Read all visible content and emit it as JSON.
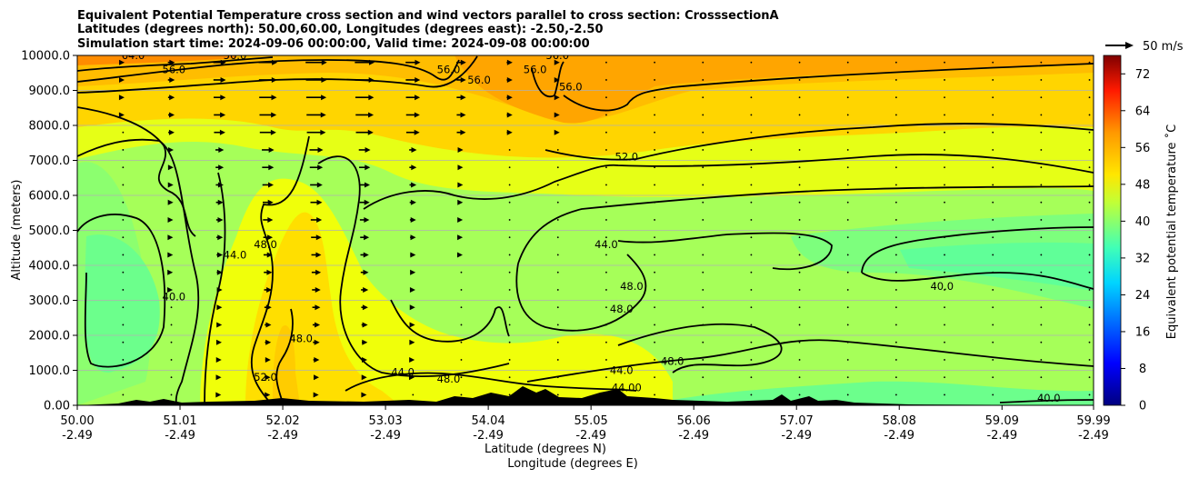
{
  "chart_data": {
    "type": "contour",
    "title_lines": [
      "Equivalent Potential Temperature cross section and wind vectors parallel to cross section: CrosssectionA",
      "Latitudes (degrees north): 50.00,60.00, Longitudes (degrees east): -2.50,-2.50",
      "Simulation start time: 2024-09-06 00:00:00, Valid time: 2024-09-08 00:00:00"
    ],
    "ylabel": "Altitude (meters)",
    "xlabel_lines": [
      "Latitude (degrees N)",
      "Longitude (degrees E)"
    ],
    "xlim": [
      50.0,
      59.99
    ],
    "ylim": [
      0,
      10000
    ],
    "grid": "horizontal",
    "x_ticks": [
      {
        "lat": "50.00",
        "lon": "-2.49",
        "value": 50.0
      },
      {
        "lat": "51.01",
        "lon": "-2.49",
        "value": 51.01
      },
      {
        "lat": "52.02",
        "lon": "-2.49",
        "value": 52.02
      },
      {
        "lat": "53.03",
        "lon": "-2.49",
        "value": 53.03
      },
      {
        "lat": "54.04",
        "lon": "-2.49",
        "value": 54.04
      },
      {
        "lat": "55.05",
        "lon": "-2.49",
        "value": 55.05
      },
      {
        "lat": "56.06",
        "lon": "-2.49",
        "value": 56.06
      },
      {
        "lat": "57.07",
        "lon": "-2.49",
        "value": 57.07
      },
      {
        "lat": "58.08",
        "lon": "-2.49",
        "value": 58.08
      },
      {
        "lat": "59.09",
        "lon": "-2.49",
        "value": 59.09
      },
      {
        "lat": "59.99",
        "lon": "-2.49",
        "value": 59.99
      }
    ],
    "y_ticks": [
      "0.00",
      "1000.0",
      "2000.0",
      "3000.0",
      "4000.0",
      "5000.0",
      "6000.0",
      "7000.0",
      "8000.0",
      "9000.0",
      "10000.0"
    ],
    "colorbar": {
      "label": "Equivalent potential temperature ˚C",
      "ticks": [
        "0",
        "8",
        "16",
        "24",
        "32",
        "40",
        "48",
        "56",
        "64",
        "72"
      ],
      "range": [
        0,
        76
      ],
      "colormap": "jet"
    },
    "wind_key": {
      "label": "50 m/s",
      "speed": 50
    },
    "contour_labels": [
      {
        "text": "64.0",
        "lat": 50.55,
        "alt": 9900
      },
      {
        "text": "56.0",
        "lat": 50.95,
        "alt": 9500
      },
      {
        "text": "56.0",
        "lat": 51.55,
        "alt": 9900
      },
      {
        "text": "56.0",
        "lat": 53.65,
        "alt": 9500
      },
      {
        "text": "56.0",
        "lat": 53.95,
        "alt": 9200
      },
      {
        "text": "56.0",
        "lat": 54.5,
        "alt": 9500
      },
      {
        "text": "56.0",
        "lat": 54.72,
        "alt": 9900
      },
      {
        "text": "56.0",
        "lat": 54.85,
        "alt": 9000
      },
      {
        "text": "52.0",
        "lat": 55.4,
        "alt": 7000
      },
      {
        "text": "44.0",
        "lat": 51.55,
        "alt": 4200
      },
      {
        "text": "48.0",
        "lat": 51.85,
        "alt": 4500
      },
      {
        "text": "40.0",
        "lat": 50.95,
        "alt": 3000
      },
      {
        "text": "44.0",
        "lat": 55.2,
        "alt": 4500
      },
      {
        "text": "48.0",
        "lat": 55.45,
        "alt": 3300
      },
      {
        "text": "48.0",
        "lat": 55.35,
        "alt": 2650
      },
      {
        "text": "40.0",
        "lat": 58.5,
        "alt": 3300
      },
      {
        "text": "48.0",
        "lat": 52.2,
        "alt": 1800
      },
      {
        "text": "48.0",
        "lat": 55.85,
        "alt": 1150
      },
      {
        "text": "44.0",
        "lat": 55.35,
        "alt": 900
      },
      {
        "text": "44.0",
        "lat": 53.2,
        "alt": 850
      },
      {
        "text": "52.0",
        "lat": 51.85,
        "alt": 700
      },
      {
        "text": "48.0",
        "lat": 53.65,
        "alt": 650
      },
      {
        "text": "40.0",
        "lat": 59.55,
        "alt": 100
      },
      {
        "text": "44.00",
        "lat": 55.4,
        "alt": 400
      }
    ]
  }
}
